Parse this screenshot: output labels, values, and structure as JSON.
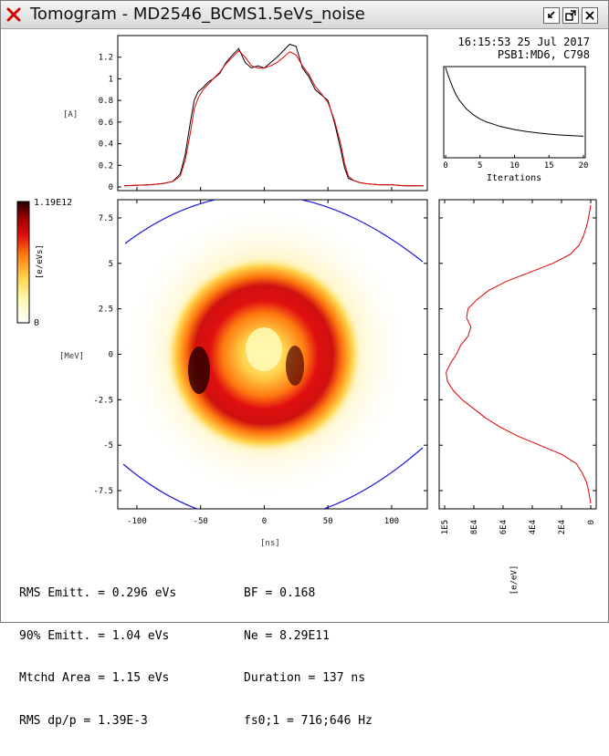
{
  "window": {
    "title": "Tomogram - MD2546_BCMS1.5eVs_noise",
    "buttons": [
      "minimize-icon",
      "maximize-icon",
      "close-icon"
    ]
  },
  "header": {
    "timestamp": "16:15:53 25 Jul 2017",
    "source": "PSB1:MD6, C798"
  },
  "colorbar": {
    "max_label": "1.19E12",
    "min_label": "0",
    "unit_label": "[e/eVs]"
  },
  "profile_plot": {
    "ylabel": "[A]",
    "yticks": [
      "0",
      "0.2",
      "0.4",
      "0.6",
      "0.8",
      "1",
      "1.2"
    ],
    "line_colors": {
      "measured": "#000000",
      "reconstructed": "#e00000"
    }
  },
  "phase_space": {
    "xlabel": "[ns]",
    "ylabel": "[MeV]",
    "xticks": [
      "-100",
      "-50",
      "0",
      "50",
      "100"
    ],
    "yticks": [
      "7.5",
      "5",
      "2.5",
      "0",
      "-2.5",
      "-5",
      "-7.5"
    ],
    "separatrix_color": "#1a1adc",
    "colormap": [
      "#ffffff",
      "#fff8b0",
      "#ffd24a",
      "#ff7a10",
      "#e01010",
      "#a00000",
      "#200000"
    ]
  },
  "convergence_plot": {
    "xlabel": "Iterations",
    "xticks": [
      "0",
      "5",
      "10",
      "15",
      "20"
    ]
  },
  "energy_profile": {
    "xlabel": "[e/eV]",
    "xticks": [
      "1E5",
      "8E4",
      "6E4",
      "4E4",
      "2E4",
      "0"
    ],
    "line_color": "#e00000"
  },
  "stats": {
    "left": [
      "RMS Emitt. = 0.296 eVs",
      "90% Emitt. = 1.04 eVs",
      "Mtchd Area = 1.15 eVs",
      "RMS dp/p = 1.39E-3"
    ],
    "right": [
      "BF = 0.168",
      "Ne = 8.29E11",
      "Duration = 137 ns",
      "fs0;1 = 716;646 Hz"
    ]
  },
  "chart_data": [
    {
      "type": "line",
      "title": "",
      "xlabel": "",
      "ylabel": "[A]",
      "xlim": [
        -115,
        128
      ],
      "ylim": [
        0,
        1.4
      ],
      "series": [
        {
          "x": [
            -110,
            -90,
            -80,
            -72,
            -66,
            -62,
            -58,
            -55,
            -52,
            -48,
            -44,
            -40,
            -35,
            -30,
            -25,
            -20,
            -15,
            -10,
            -5,
            0,
            5,
            10,
            15,
            20,
            25,
            30,
            35,
            40,
            45,
            50,
            55,
            60,
            63,
            66,
            70,
            75,
            80,
            90,
            100,
            110,
            125
          ],
          "values": [
            0.01,
            0.02,
            0.03,
            0.05,
            0.12,
            0.3,
            0.6,
            0.8,
            0.88,
            0.92,
            0.97,
            1.0,
            1.05,
            1.15,
            1.22,
            1.28,
            1.15,
            1.1,
            1.12,
            1.1,
            1.15,
            1.2,
            1.26,
            1.32,
            1.3,
            1.1,
            1.02,
            0.9,
            0.85,
            0.8,
            0.6,
            0.35,
            0.18,
            0.08,
            0.06,
            0.04,
            0.03,
            0.02,
            0.02,
            0.01,
            0.01
          ]
        },
        {
          "x": [
            -110,
            -90,
            -80,
            -72,
            -66,
            -62,
            -58,
            -55,
            -52,
            -48,
            -44,
            -40,
            -35,
            -30,
            -25,
            -20,
            -15,
            -10,
            -5,
            0,
            5,
            10,
            15,
            20,
            25,
            30,
            35,
            40,
            45,
            50,
            55,
            60,
            63,
            66,
            70,
            75,
            80,
            90,
            100,
            110,
            125
          ],
          "values": [
            0.01,
            0.02,
            0.03,
            0.05,
            0.1,
            0.25,
            0.5,
            0.72,
            0.82,
            0.9,
            0.95,
            1.0,
            1.06,
            1.14,
            1.2,
            1.26,
            1.2,
            1.12,
            1.1,
            1.1,
            1.12,
            1.15,
            1.2,
            1.25,
            1.22,
            1.12,
            1.04,
            0.93,
            0.86,
            0.78,
            0.62,
            0.4,
            0.22,
            0.1,
            0.06,
            0.04,
            0.03,
            0.02,
            0.02,
            0.01,
            0.01
          ]
        }
      ]
    },
    {
      "type": "line",
      "title": "",
      "xlabel": "Iterations",
      "ylabel": "",
      "xlim": [
        0,
        20
      ],
      "series": [
        {
          "x": [
            0,
            0.5,
            1,
            1.5,
            2,
            3,
            4,
            5,
            6,
            7,
            8,
            9,
            10,
            12,
            14,
            16,
            18,
            20
          ],
          "values": [
            1.0,
            0.86,
            0.74,
            0.64,
            0.56,
            0.45,
            0.37,
            0.31,
            0.27,
            0.24,
            0.21,
            0.19,
            0.17,
            0.14,
            0.12,
            0.1,
            0.09,
            0.08
          ]
        }
      ]
    },
    {
      "type": "line",
      "title": "",
      "xlabel": "[e/eV]",
      "ylabel": "",
      "xlim": [
        0,
        100000
      ],
      "ylim": [
        -8.5,
        8.5
      ],
      "series": [
        {
          "y": [
            8.2,
            7.5,
            7.0,
            6.5,
            6.0,
            5.5,
            5.0,
            4.5,
            4.0,
            3.5,
            3.0,
            2.5,
            2.0,
            1.5,
            1.0,
            0.5,
            0,
            -0.5,
            -1.0,
            -1.5,
            -2.0,
            -2.5,
            -3.0,
            -3.5,
            -4.0,
            -4.5,
            -5.0,
            -5.5,
            -6.0,
            -6.5,
            -7.0,
            -7.5,
            -8.2
          ],
          "values": [
            0,
            1500,
            3000,
            5000,
            8000,
            14000,
            26000,
            42000,
            58000,
            70000,
            78000,
            84000,
            85000,
            82000,
            84000,
            89000,
            92000,
            96000,
            99000,
            98000,
            94000,
            88000,
            80000,
            72000,
            62000,
            50000,
            35000,
            20000,
            10000,
            6000,
            3000,
            1500,
            0
          ]
        }
      ]
    }
  ]
}
